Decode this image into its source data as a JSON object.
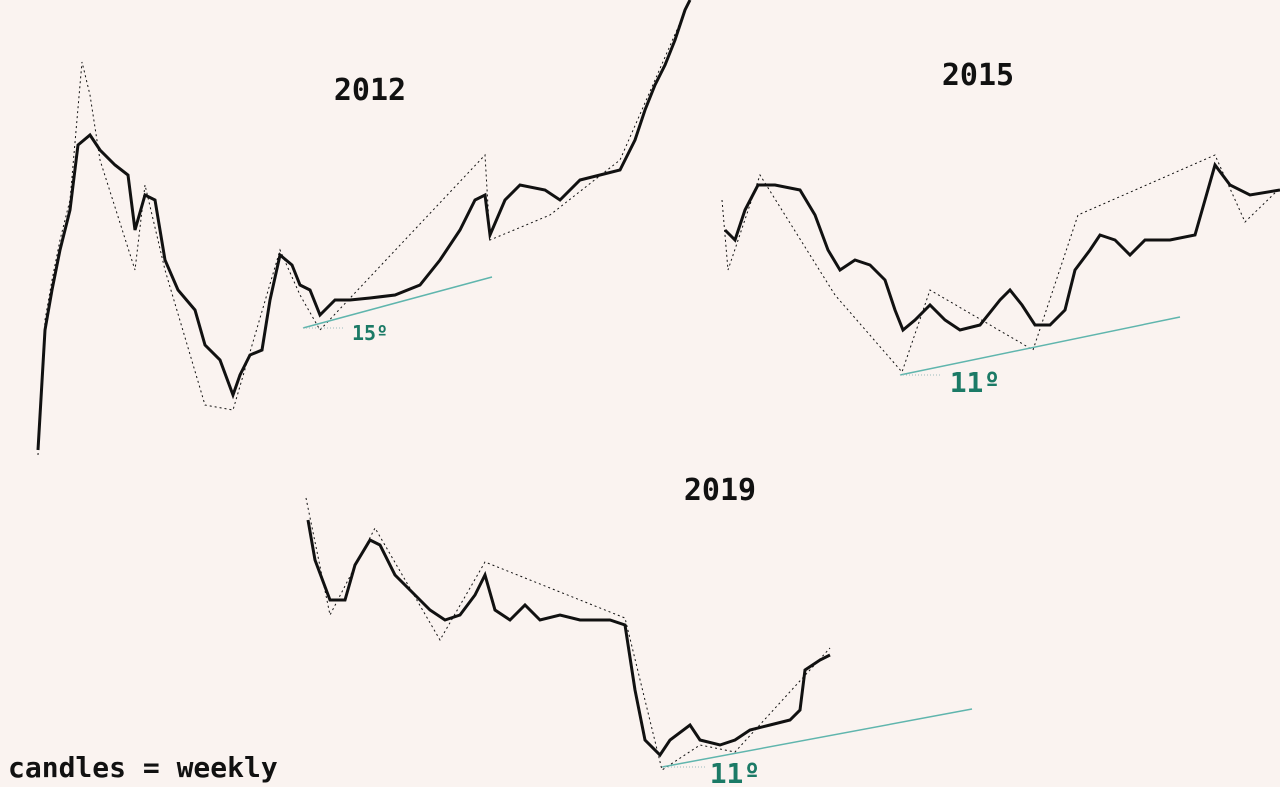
{
  "panels": [
    {
      "title": "2012",
      "angle": "15º"
    },
    {
      "title": "2015",
      "angle": "11º"
    },
    {
      "title": "2019",
      "angle": "11º"
    }
  ],
  "footer": "candles = weekly"
}
